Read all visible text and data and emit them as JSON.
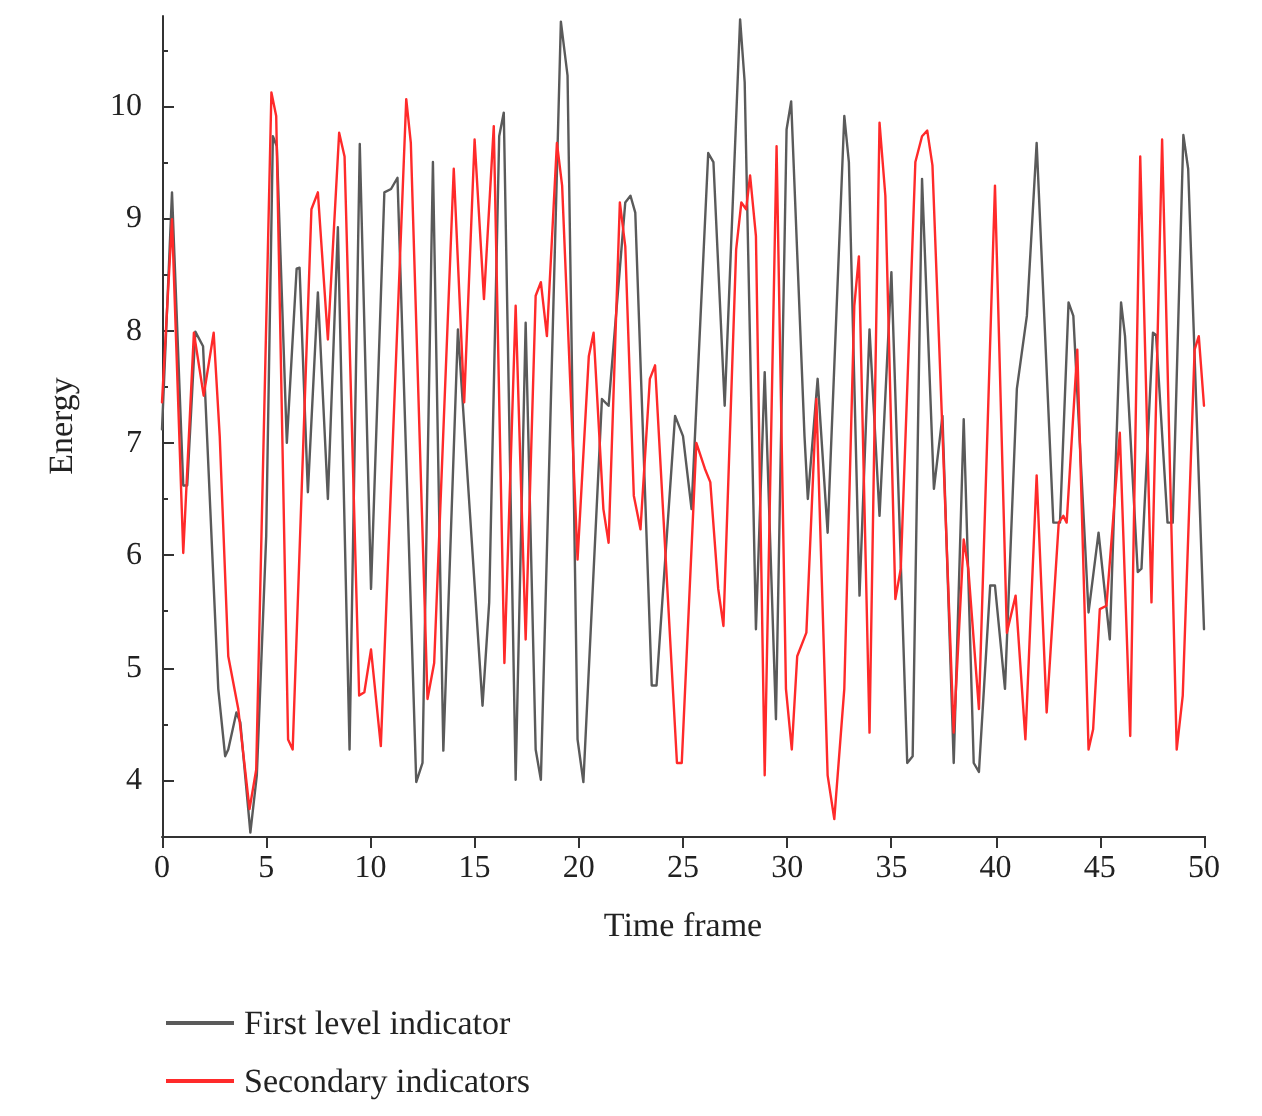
{
  "chart_data": {
    "type": "line",
    "xlabel": "Time frame",
    "ylabel": "Energy",
    "xlim": [
      0,
      50
    ],
    "xticks": [
      0,
      5,
      10,
      15,
      20,
      25,
      30,
      35,
      40,
      45,
      50
    ],
    "ylim": [
      3.5,
      10.8
    ],
    "yticks": [
      4,
      5,
      6,
      7,
      8,
      9,
      10
    ],
    "grid": false,
    "legend": "bottom",
    "marker": "none",
    "line_style": "solid",
    "series": [
      {
        "name": "First level indicator",
        "color": "#5a5a5a",
        "x": [
          0,
          0.48,
          1.02,
          1.21,
          1.6,
          1.97,
          2.7,
          3.03,
          3.18,
          3.57,
          3.76,
          4.24,
          4.55,
          5.0,
          5.32,
          5.51,
          5.99,
          6.46,
          6.6,
          7.0,
          7.48,
          7.96,
          8.44,
          9.0,
          9.49,
          10.03,
          10.67,
          10.99,
          11.3,
          12.2,
          12.5,
          13.0,
          13.5,
          14.2,
          15.38,
          15.7,
          16.18,
          16.4,
          16.97,
          17.45,
          17.93,
          18.18,
          19.14,
          19.46,
          19.94,
          20.22,
          21.11,
          21.43,
          22.23,
          22.48,
          22.71,
          23.5,
          23.73,
          24.62,
          25.0,
          25.41,
          26.21,
          26.46,
          27.0,
          27.74,
          27.96,
          28.5,
          28.92,
          29.46,
          29.97,
          30.19,
          30.83,
          30.99,
          31.46,
          31.94,
          32.74,
          32.96,
          33.47,
          33.95,
          34.43,
          35.0,
          35.76,
          36.02,
          36.47,
          37.04,
          37.45,
          37.99,
          38.47,
          38.95,
          39.2,
          39.74,
          39.97,
          40.45,
          41.02,
          41.5,
          41.97,
          42.77,
          43.09,
          43.5,
          43.73,
          44.46,
          44.94,
          45.48,
          46.02,
          46.21,
          46.82,
          47.0,
          47.55,
          47.7,
          48.25,
          48.5,
          49.01,
          49.24,
          50.0
        ],
        "values": [
          7.12,
          9.23,
          6.62,
          6.62,
          7.99,
          7.86,
          4.81,
          4.21,
          4.27,
          4.6,
          4.51,
          3.53,
          4.04,
          6.17,
          9.73,
          9.64,
          7.0,
          8.55,
          8.56,
          6.56,
          8.34,
          6.5,
          8.92,
          4.27,
          9.66,
          5.7,
          9.23,
          9.26,
          9.36,
          3.98,
          4.15,
          9.5,
          4.26,
          8.01,
          4.66,
          5.58,
          9.73,
          9.94,
          4.0,
          8.07,
          4.27,
          4.0,
          10.75,
          10.27,
          4.36,
          3.98,
          7.39,
          7.33,
          9.14,
          9.2,
          9.05,
          4.84,
          4.84,
          7.24,
          7.06,
          6.41,
          9.58,
          9.5,
          7.33,
          10.77,
          10.21,
          5.34,
          7.63,
          4.54,
          9.79,
          10.04,
          7.06,
          6.5,
          7.57,
          6.2,
          9.91,
          9.5,
          5.64,
          8.01,
          6.35,
          8.52,
          4.15,
          4.21,
          9.35,
          6.59,
          7.24,
          4.15,
          7.21,
          4.15,
          4.07,
          5.73,
          5.73,
          4.81,
          7.48,
          8.13,
          9.67,
          6.29,
          6.29,
          8.25,
          8.13,
          5.49,
          6.2,
          5.25,
          8.25,
          7.95,
          5.85,
          5.88,
          7.98,
          7.96,
          6.29,
          6.29,
          9.74,
          9.44,
          5.34
        ]
      },
      {
        "name": "Secondary indicators",
        "color": "#ff2a2a",
        "x": [
          0,
          0.48,
          1.02,
          1.53,
          2.0,
          2.48,
          2.77,
          3.18,
          3.66,
          4.2,
          4.52,
          5.25,
          5.48,
          6.05,
          6.27,
          7.17,
          7.48,
          7.96,
          8.5,
          8.76,
          9.46,
          9.71,
          10.03,
          10.5,
          11.72,
          11.94,
          12.74,
          13.06,
          14.0,
          14.5,
          15.0,
          15.45,
          15.92,
          16.43,
          16.97,
          17.45,
          17.93,
          18.18,
          18.47,
          18.95,
          19.2,
          19.94,
          20.48,
          20.71,
          21.18,
          21.43,
          21.97,
          22.23,
          22.64,
          22.96,
          23.41,
          23.66,
          24.71,
          24.94,
          25.64,
          26.05,
          26.31,
          26.69,
          26.94,
          27.55,
          27.8,
          28.03,
          28.22,
          28.5,
          28.92,
          29.49,
          29.94,
          30.22,
          30.48,
          30.92,
          31.4,
          31.94,
          32.26,
          32.74,
          33.22,
          33.44,
          33.95,
          34.43,
          34.71,
          35.19,
          35.45,
          36.15,
          36.47,
          36.72,
          36.97,
          37.99,
          38.47,
          38.69,
          39.2,
          39.97,
          40.54,
          40.96,
          41.43,
          41.97,
          42.45,
          43.03,
          43.25,
          43.41,
          43.92,
          44.46,
          44.68,
          45.0,
          45.32,
          45.96,
          46.46,
          46.94,
          47.48,
          47.99,
          48.69,
          48.98,
          49.55,
          49.75,
          50.0
        ],
        "values": [
          7.36,
          8.99,
          6.02,
          7.98,
          7.42,
          7.98,
          7.06,
          5.1,
          4.63,
          3.74,
          4.09,
          10.12,
          9.91,
          4.36,
          4.27,
          9.08,
          9.23,
          7.92,
          9.76,
          9.55,
          4.75,
          4.78,
          5.16,
          4.3,
          10.06,
          9.67,
          4.72,
          5.04,
          9.44,
          7.36,
          9.7,
          8.28,
          9.82,
          5.04,
          8.22,
          5.25,
          8.31,
          8.43,
          7.95,
          9.67,
          9.29,
          5.96,
          7.77,
          7.98,
          6.41,
          6.11,
          9.14,
          8.75,
          6.53,
          6.23,
          7.57,
          7.69,
          4.15,
          4.15,
          7.0,
          6.77,
          6.65,
          5.7,
          5.37,
          8.72,
          9.14,
          9.08,
          9.38,
          8.84,
          4.04,
          9.64,
          4.81,
          4.27,
          5.1,
          5.31,
          7.39,
          4.04,
          3.65,
          4.81,
          8.22,
          8.66,
          4.42,
          9.85,
          9.2,
          5.61,
          5.88,
          9.5,
          9.73,
          9.78,
          9.47,
          4.42,
          6.14,
          5.88,
          4.63,
          9.29,
          5.31,
          5.64,
          4.36,
          6.71,
          4.6,
          6.29,
          6.35,
          6.29,
          7.83,
          4.27,
          4.45,
          5.52,
          5.55,
          7.09,
          4.39,
          9.55,
          5.58,
          9.7,
          4.27,
          4.75,
          7.83,
          7.95,
          7.33
        ]
      }
    ]
  }
}
